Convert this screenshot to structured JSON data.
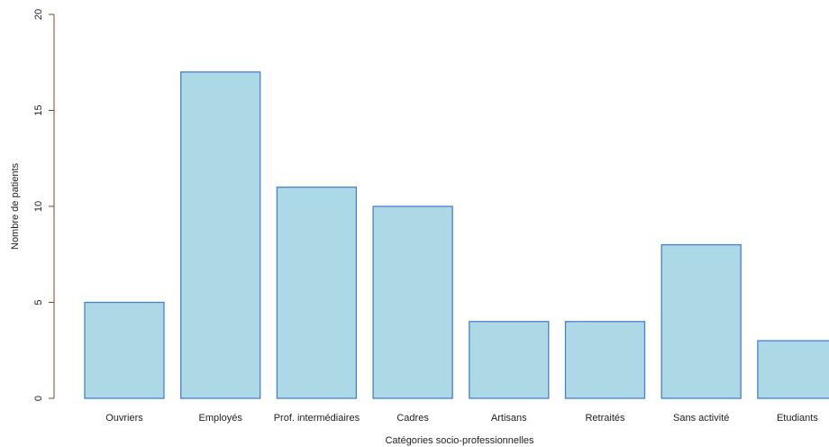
{
  "chart_data": {
    "type": "bar",
    "categories": [
      "Ouvriers",
      "Employés",
      "Prof. intermédiaires",
      "Cadres",
      "Artisans",
      "Retraités",
      "Sans activité",
      "Etudiants"
    ],
    "values": [
      5,
      17,
      11,
      10,
      4,
      4,
      8,
      3
    ],
    "title": "",
    "xlabel": "Catégories socio-professionnelles",
    "ylabel": "Nombre de patients",
    "ylim": [
      0,
      20
    ],
    "yticks": [
      0,
      5,
      10,
      15,
      20
    ],
    "grid": false,
    "colors": {
      "bar_fill": "#add8e6",
      "bar_stroke": "#4a7fd6",
      "axis": "#7a4a2a"
    }
  }
}
